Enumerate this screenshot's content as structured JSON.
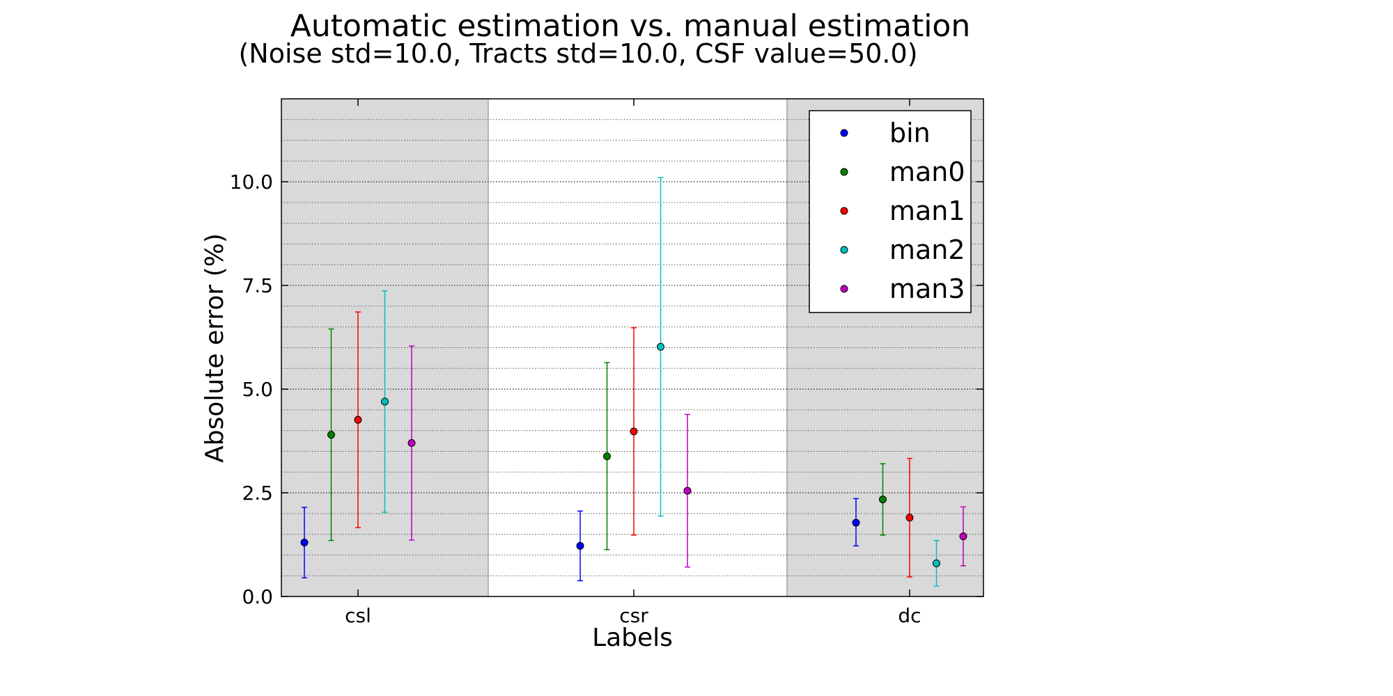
{
  "chart_data": {
    "type": "scatter",
    "title": "Automatic estimation vs. manual estimation",
    "subtitle": "(Noise std=10.0, Tracts std=10.0, CSF value=50.0)",
    "xlabel": "Labels",
    "ylabel": "Absolute error (%)",
    "ylim": [
      0,
      12
    ],
    "yticks": [
      "0.0",
      "2.5",
      "5.0",
      "7.5",
      "10.0"
    ],
    "categories": [
      "csl",
      "csr",
      "dc"
    ],
    "shaded_categories": [
      "csl",
      "dc"
    ],
    "grid": "horizontal dotted, minor every 0.5",
    "legend_position": "top-right",
    "series": [
      {
        "name": "bin",
        "color": "#0000ff",
        "values": [
          1.3,
          1.22,
          1.78
        ],
        "lower": [
          0.45,
          0.38,
          1.22
        ],
        "upper": [
          2.15,
          2.06,
          2.36
        ]
      },
      {
        "name": "man0",
        "color": "#008000",
        "values": [
          3.9,
          3.38,
          2.34
        ],
        "lower": [
          1.35,
          1.13,
          1.48
        ],
        "upper": [
          6.45,
          5.64,
          3.2
        ]
      },
      {
        "name": "man1",
        "color": "#ff0000",
        "values": [
          4.26,
          3.98,
          1.9
        ],
        "lower": [
          1.66,
          1.48,
          0.47
        ],
        "upper": [
          6.86,
          6.48,
          3.33
        ]
      },
      {
        "name": "man2",
        "color": "#00bfbf",
        "values": [
          4.7,
          6.02,
          0.8
        ],
        "lower": [
          2.03,
          1.94,
          0.25
        ],
        "upper": [
          7.37,
          10.1,
          1.35
        ]
      },
      {
        "name": "man3",
        "color": "#bf00bf",
        "values": [
          3.7,
          2.55,
          1.45
        ],
        "lower": [
          1.36,
          0.71,
          0.74
        ],
        "upper": [
          6.04,
          4.39,
          2.16
        ]
      }
    ]
  }
}
